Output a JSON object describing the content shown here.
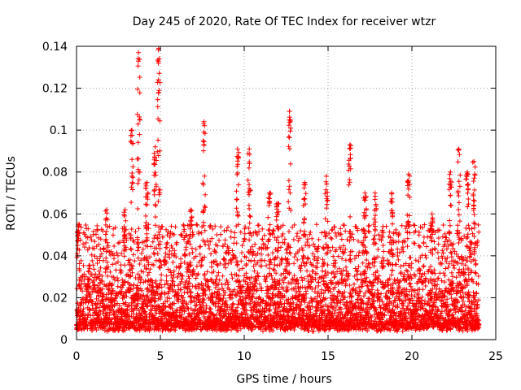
{
  "chart_data": {
    "type": "scatter",
    "title": "Day 245 of 2020, Rate Of TEC Index for receiver wtzr",
    "xlabel": "GPS time / hours",
    "ylabel": "ROTI / TECUs",
    "xlim": [
      0,
      25
    ],
    "ylim": [
      0,
      0.14
    ],
    "x_ticks": [
      0,
      5,
      10,
      15,
      20,
      25
    ],
    "x_tick_labels": [
      "0",
      "5",
      "10",
      "15",
      "20",
      "25"
    ],
    "y_ticks": [
      0,
      0.02,
      0.04,
      0.06,
      0.08,
      0.1,
      0.12,
      0.14
    ],
    "y_tick_labels": [
      "0",
      "0.02",
      "0.04",
      "0.06",
      "0.08",
      "0.1",
      "0.12",
      "0.14"
    ],
    "grid": true,
    "marker": "+",
    "marker_color": "#ff0000",
    "series": [
      {
        "name": "ROTI",
        "x_range": [
          0,
          24
        ],
        "baseline_band": [
          0.004,
          0.04
        ],
        "spikes": [
          {
            "x": 0.1,
            "peak": 0.055
          },
          {
            "x": 1.8,
            "peak": 0.062
          },
          {
            "x": 2.9,
            "peak": 0.062
          },
          {
            "x": 3.3,
            "peak": 0.1
          },
          {
            "x": 3.7,
            "peak": 0.137
          },
          {
            "x": 4.2,
            "peak": 0.075
          },
          {
            "x": 4.7,
            "peak": 0.092
          },
          {
            "x": 4.9,
            "peak": 0.139
          },
          {
            "x": 6.8,
            "peak": 0.062
          },
          {
            "x": 7.6,
            "peak": 0.104
          },
          {
            "x": 9.6,
            "peak": 0.091
          },
          {
            "x": 10.3,
            "peak": 0.091
          },
          {
            "x": 11.5,
            "peak": 0.07
          },
          {
            "x": 12.0,
            "peak": 0.065
          },
          {
            "x": 12.7,
            "peak": 0.109
          },
          {
            "x": 13.6,
            "peak": 0.075
          },
          {
            "x": 14.9,
            "peak": 0.078
          },
          {
            "x": 16.3,
            "peak": 0.093
          },
          {
            "x": 17.2,
            "peak": 0.07
          },
          {
            "x": 17.8,
            "peak": 0.07
          },
          {
            "x": 18.8,
            "peak": 0.07
          },
          {
            "x": 19.8,
            "peak": 0.079
          },
          {
            "x": 21.2,
            "peak": 0.06
          },
          {
            "x": 22.3,
            "peak": 0.08
          },
          {
            "x": 22.8,
            "peak": 0.091
          },
          {
            "x": 23.3,
            "peak": 0.08
          },
          {
            "x": 23.7,
            "peak": 0.085
          }
        ]
      }
    ]
  }
}
